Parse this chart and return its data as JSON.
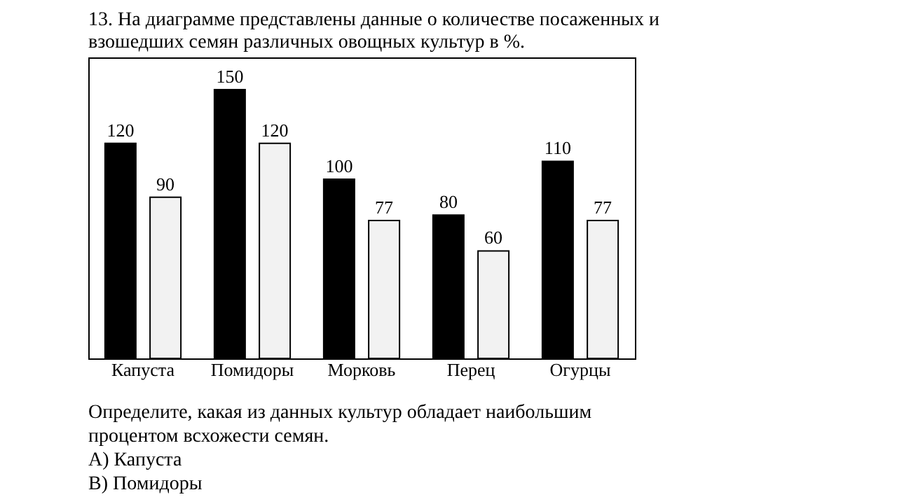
{
  "chart_data": {
    "type": "bar",
    "title": "13. На диаграмме представлены данные о количестве посаженных и взошедших семян различных овощных культур в %.",
    "categories": [
      "Капуста",
      "Помидоры",
      "Морковь",
      "Перец",
      "Огурцы"
    ],
    "series": [
      {
        "color": "#000000",
        "values": [
          120,
          150,
          100,
          80,
          110
        ]
      },
      {
        "color": "#f2f2f2",
        "values": [
          90,
          120,
          77,
          60,
          77
        ]
      }
    ],
    "data_labels": true,
    "annotations": [
      "Определите, какая из данных культур обладает наибольшим процентом всхожести семян.",
      "А) Капуста",
      "В) Помидоры"
    ]
  }
}
